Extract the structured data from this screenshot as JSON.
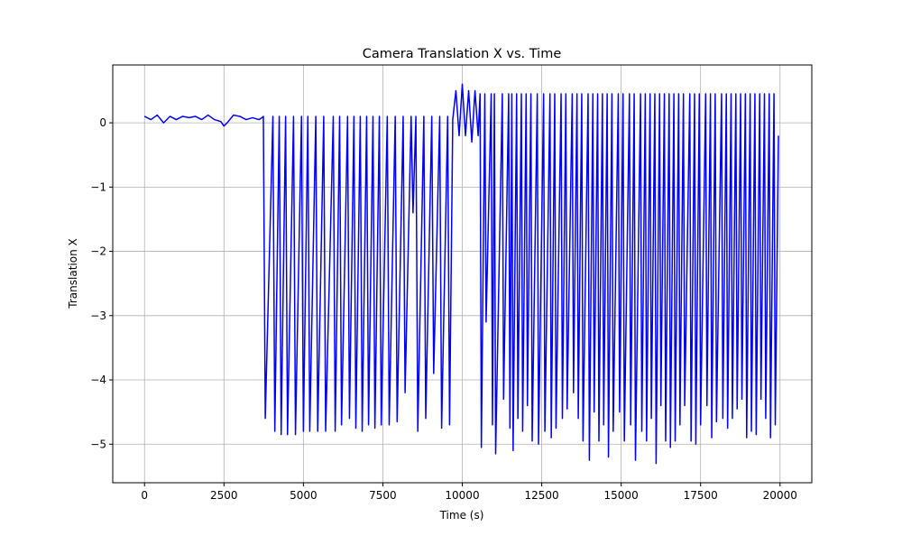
{
  "chart_data": {
    "type": "line",
    "title": "Camera Translation X vs. Time",
    "x_label": "Time (s)",
    "y_label": "Translation X",
    "xlim": [
      -1000,
      21000
    ],
    "ylim": [
      -5.6,
      0.9
    ],
    "xticks": [
      0,
      2500,
      5000,
      7500,
      10000,
      12500,
      15000,
      17500,
      20000
    ],
    "yticks": [
      {
        "value": -5,
        "label": "−5"
      },
      {
        "value": -4,
        "label": "−4"
      },
      {
        "value": -3,
        "label": "−3"
      },
      {
        "value": -2,
        "label": "−2"
      },
      {
        "value": -1,
        "label": "−1"
      },
      0
    ],
    "grid": true,
    "x": [
      0,
      200,
      400,
      600,
      800,
      1000,
      1200,
      1400,
      1600,
      1800,
      2000,
      2200,
      2400,
      2500,
      2600,
      2800,
      3000,
      3200,
      3400,
      3600,
      3700,
      3740,
      3800,
      4040,
      4100,
      4240,
      4300,
      4440,
      4500,
      4690,
      4750,
      4940,
      5000,
      5140,
      5200,
      5390,
      5450,
      5640,
      5700,
      5940,
      6000,
      6140,
      6200,
      6390,
      6450,
      6590,
      6650,
      6790,
      6850,
      6990,
      7050,
      7190,
      7250,
      7390,
      7450,
      7640,
      7700,
      7890,
      7950,
      8140,
      8200,
      8390,
      8450,
      8540,
      8600,
      8790,
      8850,
      9040,
      9100,
      9290,
      9350,
      9540,
      9600,
      9700,
      9800,
      9900,
      10000,
      10100,
      10200,
      10300,
      10400,
      10500,
      10560,
      10600,
      10710,
      10750,
      10910,
      10950,
      11010,
      11050,
      11260,
      11300,
      11460,
      11500,
      11560,
      11600,
      11710,
      11750,
      11860,
      11900,
      12010,
      12050,
      12160,
      12200,
      12360,
      12400,
      12560,
      12600,
      12760,
      12800,
      12910,
      12950,
      13110,
      13150,
      13260,
      13300,
      13460,
      13500,
      13610,
      13650,
      13760,
      13800,
      13960,
      14000,
      14110,
      14150,
      14260,
      14300,
      14410,
      14450,
      14560,
      14600,
      14710,
      14750,
      14910,
      14950,
      15060,
      15100,
      15260,
      15300,
      15410,
      15450,
      15610,
      15650,
      15760,
      15800,
      15910,
      15950,
      16060,
      16100,
      16210,
      16250,
      16360,
      16400,
      16510,
      16550,
      16660,
      16700,
      16810,
      16850,
      16960,
      17000,
      17160,
      17200,
      17310,
      17350,
      17460,
      17500,
      17660,
      17700,
      17810,
      17850,
      17960,
      18000,
      18160,
      18200,
      18310,
      18350,
      18460,
      18500,
      18610,
      18650,
      18760,
      18800,
      18910,
      18950,
      19060,
      19100,
      19210,
      19250,
      19360,
      19400,
      19510,
      19550,
      19660,
      19700,
      19810,
      19850,
      19950
    ],
    "series": [
      {
        "color": "#0000ff",
        "values": [
          0.1,
          0.05,
          0.12,
          0.0,
          0.1,
          0.05,
          0.1,
          0.08,
          0.1,
          0.05,
          0.12,
          0.05,
          0.02,
          -0.05,
          0.0,
          0.12,
          0.1,
          0.05,
          0.08,
          0.05,
          0.08,
          0.1,
          -4.6,
          0.1,
          -4.8,
          0.1,
          -4.85,
          0.1,
          -4.85,
          0.1,
          -4.85,
          0.1,
          -4.8,
          0.1,
          -4.8,
          0.1,
          -4.8,
          0.1,
          -4.8,
          0.1,
          -4.8,
          0.1,
          -4.7,
          0.1,
          -4.6,
          0.1,
          -4.75,
          0.1,
          -4.8,
          0.1,
          -4.7,
          0.1,
          -4.75,
          0.1,
          -4.7,
          0.1,
          -4.7,
          0.1,
          -4.65,
          0.1,
          -4.2,
          0.1,
          -1.4,
          0.1,
          -4.8,
          0.1,
          -4.6,
          0.1,
          -3.9,
          0.1,
          -4.75,
          0.1,
          -4.7,
          0.05,
          0.5,
          -0.2,
          0.6,
          -0.2,
          0.5,
          -0.3,
          0.5,
          -0.2,
          0.45,
          -5.05,
          0.45,
          -3.1,
          0.45,
          -4.7,
          0.45,
          -5.15,
          0.45,
          -4.3,
          0.45,
          -4.75,
          0.45,
          -5.1,
          0.45,
          -4.6,
          0.45,
          -4.8,
          0.45,
          -4.4,
          0.45,
          -4.95,
          0.45,
          -5.0,
          0.45,
          -4.8,
          0.45,
          -4.9,
          0.45,
          -4.75,
          0.45,
          -4.6,
          0.45,
          -4.45,
          0.45,
          -4.2,
          0.45,
          -4.6,
          0.45,
          -4.95,
          0.45,
          -5.25,
          0.45,
          -4.5,
          0.45,
          -4.95,
          0.45,
          -4.7,
          0.45,
          -5.2,
          0.45,
          -4.8,
          0.45,
          -4.5,
          0.45,
          -4.95,
          0.45,
          -4.7,
          0.45,
          -5.25,
          0.45,
          -4.8,
          0.45,
          -4.95,
          0.45,
          -4.6,
          0.45,
          -5.3,
          0.45,
          -4.4,
          0.45,
          -4.95,
          0.45,
          -5.05,
          0.45,
          -4.95,
          0.45,
          -4.7,
          0.45,
          -4.4,
          0.45,
          -4.95,
          0.45,
          -5.0,
          0.45,
          -4.7,
          0.45,
          -4.4,
          0.45,
          -4.9,
          0.45,
          -4.65,
          0.45,
          -4.6,
          0.45,
          -4.75,
          0.45,
          -4.6,
          0.45,
          -4.45,
          0.45,
          -4.3,
          0.45,
          -4.9,
          0.45,
          -4.8,
          0.45,
          -4.85,
          0.45,
          -4.3,
          0.45,
          -4.6,
          0.45,
          -4.9,
          0.45,
          -4.7,
          -0.2
        ]
      }
    ]
  }
}
